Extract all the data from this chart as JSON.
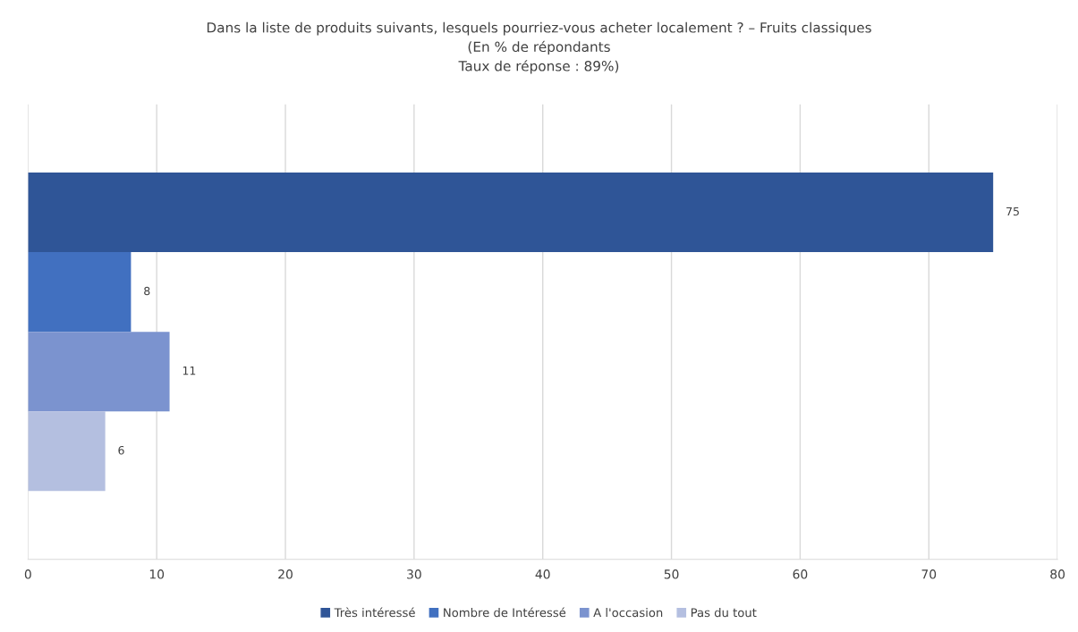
{
  "chart_data": {
    "type": "bar",
    "orientation": "horizontal",
    "title": "Dans la liste de produits suivants, lesquels pourriez-vous acheter localement ? – Fruits classiques\n(En % de répondants\nTaux de réponse : 89%)",
    "categories": [
      null
    ],
    "series": [
      {
        "name": "Très intéressé",
        "color": "#2f5597",
        "values": [
          75
        ]
      },
      {
        "name": "Nombre de Intéressé",
        "color": "#4170c0",
        "values": [
          8
        ]
      },
      {
        "name": "A l'occasion",
        "color": "#7b93cf",
        "values": [
          11
        ]
      },
      {
        "name": "Pas du tout",
        "color": "#b4bfe0",
        "values": [
          6
        ]
      }
    ],
    "xlim": [
      0,
      80
    ],
    "xticks": [
      0,
      10,
      20,
      30,
      40,
      50,
      60,
      70,
      80
    ],
    "grid": "x",
    "legend": "bottom",
    "data_labels": true,
    "tick_labels": "x"
  }
}
